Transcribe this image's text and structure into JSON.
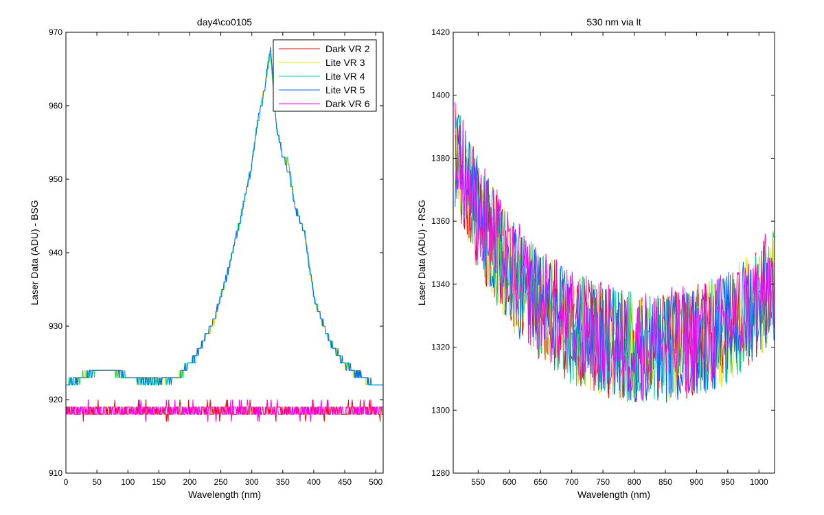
{
  "chart_data": [
    {
      "type": "line",
      "title": "day4\\co0105",
      "xlabel": "Wavelength (nm)",
      "ylabel": "Laser Data (ADU) - BSG",
      "xlim": [
        0,
        512
      ],
      "ylim": [
        910,
        970
      ],
      "xticks": [
        0,
        50,
        100,
        150,
        200,
        250,
        300,
        350,
        400,
        450,
        500
      ],
      "yticks": [
        910,
        920,
        930,
        940,
        950,
        960,
        970
      ],
      "grid": false,
      "legend": "top-right",
      "series": [
        {
          "name": "Dark VR 2",
          "color": "#ff0000",
          "x": [
            0,
            50,
            100,
            150,
            200,
            250,
            300,
            350,
            400,
            450,
            512
          ],
          "y": [
            918.5,
            918.5,
            918.5,
            918.5,
            918.5,
            918.5,
            918.5,
            918.5,
            918.5,
            918.5,
            918.5
          ]
        },
        {
          "name": "Lite VR 3",
          "color": "#e0e000",
          "x": [
            0,
            25,
            50,
            75,
            100,
            150,
            180,
            210,
            240,
            260,
            280,
            300,
            310,
            320,
            330,
            340,
            350,
            360,
            370,
            385,
            400,
            420,
            440,
            460,
            480,
            500,
            512
          ],
          "y": [
            922,
            923,
            924,
            924,
            923,
            922.5,
            923,
            926,
            931,
            937,
            944,
            952,
            958,
            962,
            967,
            957,
            953,
            952,
            946,
            943,
            934,
            929,
            926,
            924,
            923,
            922,
            922
          ]
        },
        {
          "name": "Lite VR 4",
          "color": "#00dd88",
          "x": [
            0,
            25,
            50,
            75,
            100,
            150,
            180,
            210,
            240,
            260,
            280,
            300,
            310,
            320,
            330,
            340,
            350,
            360,
            370,
            385,
            400,
            420,
            440,
            460,
            480,
            500,
            512
          ],
          "y": [
            922,
            923,
            924,
            924,
            923,
            922.5,
            923,
            926,
            931,
            937,
            944,
            952,
            958,
            962,
            967,
            957,
            953,
            952,
            946,
            943,
            934,
            929,
            926,
            924,
            923,
            922,
            922
          ]
        },
        {
          "name": "Lite VR 5",
          "color": "#0066ff",
          "x": [
            0,
            25,
            50,
            75,
            100,
            150,
            180,
            210,
            240,
            260,
            280,
            300,
            310,
            320,
            330,
            340,
            350,
            360,
            370,
            385,
            400,
            420,
            440,
            460,
            480,
            500,
            512
          ],
          "y": [
            922,
            923,
            924,
            924,
            923,
            922.5,
            923,
            926,
            931,
            937,
            944,
            952,
            958,
            962,
            968,
            957,
            953,
            951,
            946,
            943,
            934,
            929,
            926,
            924,
            923,
            922,
            922
          ]
        },
        {
          "name": "Dark VR 6",
          "color": "#ff00ff",
          "x": [
            0,
            50,
            100,
            150,
            200,
            250,
            300,
            350,
            400,
            450,
            512
          ],
          "y": [
            918.5,
            918.5,
            918.5,
            918.5,
            918.5,
            918.5,
            918.5,
            918.5,
            918.5,
            918.5,
            918.5
          ]
        }
      ]
    },
    {
      "type": "line",
      "title": "530 nm via lt",
      "xlabel": "Wavelength (nm)",
      "ylabel": "Laser Data (ADU) - RSG",
      "xlim": [
        510,
        1025
      ],
      "ylim": [
        1280,
        1420
      ],
      "xticks": [
        550,
        600,
        650,
        700,
        750,
        800,
        850,
        900,
        950,
        1000
      ],
      "yticks": [
        1280,
        1300,
        1320,
        1340,
        1360,
        1380,
        1400,
        1420
      ],
      "grid": false,
      "legend": "none",
      "series": [
        {
          "color": "#ff0000",
          "x": [
            515,
            550,
            600,
            650,
            700,
            750,
            800,
            850,
            900,
            950,
            1000,
            1025
          ],
          "y": [
            1380,
            1362,
            1344,
            1333,
            1326,
            1322,
            1320,
            1320,
            1322,
            1326,
            1335,
            1340
          ]
        },
        {
          "color": "#e0e000",
          "x": [
            515,
            550,
            600,
            650,
            700,
            750,
            800,
            850,
            900,
            950,
            1000,
            1025
          ],
          "y": [
            1380,
            1362,
            1344,
            1333,
            1326,
            1322,
            1320,
            1320,
            1322,
            1326,
            1335,
            1340
          ]
        },
        {
          "color": "#00dd88",
          "x": [
            515,
            550,
            600,
            650,
            700,
            750,
            800,
            850,
            900,
            950,
            1000,
            1025
          ],
          "y": [
            1380,
            1362,
            1344,
            1333,
            1326,
            1322,
            1320,
            1320,
            1322,
            1326,
            1335,
            1340
          ]
        },
        {
          "color": "#0066ff",
          "x": [
            515,
            550,
            600,
            650,
            700,
            750,
            800,
            850,
            900,
            950,
            1000,
            1025
          ],
          "y": [
            1380,
            1362,
            1344,
            1333,
            1326,
            1322,
            1320,
            1320,
            1322,
            1326,
            1335,
            1340
          ]
        },
        {
          "color": "#ff00ff",
          "x": [
            515,
            550,
            600,
            650,
            700,
            750,
            800,
            850,
            900,
            950,
            1000,
            1025
          ],
          "y": [
            1382,
            1364,
            1345,
            1334,
            1327,
            1323,
            1321,
            1321,
            1323,
            1327,
            1336,
            1342
          ]
        }
      ]
    }
  ]
}
